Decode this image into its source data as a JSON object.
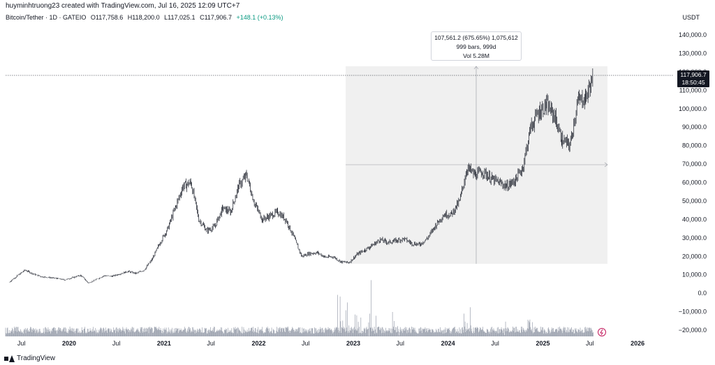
{
  "header": {
    "credit": "huyminhtruong23 created with TradingView.com, Jul 16, 2025 12:09 UTC+7",
    "symbol": "Bitcoin/Tether · 1D · GATEIO",
    "open": "O117,758.6",
    "high": "H118,200.0",
    "low": "L117,025.1",
    "close": "C117,906.7",
    "change": "+148.1 (+0.13%)",
    "currency": "USDT"
  },
  "measure": {
    "line1": "107,561.2 (675.65%) 1,075,612",
    "line2": "999 bars, 999d",
    "line3": "Vol 5.28M"
  },
  "last_price": {
    "price": "117,906.7",
    "countdown": "18:50:45"
  },
  "footer": {
    "brand": "TradingView"
  },
  "colors": {
    "candle": "#131722",
    "volume": "#9aa0ad",
    "measure_fill": "#f0f0f0",
    "price_line": "#131722",
    "change": "#089981"
  },
  "chart_data": {
    "type": "line",
    "y_axis_ticks": [
      "140,000.0",
      "130,000.0",
      "120,000.0",
      "110,000.0",
      "100,000.0",
      "90,000.0",
      "80,000.0",
      "70,000.0",
      "60,000.0",
      "50,000.0",
      "40,000.0",
      "30,000.0",
      "20,000.0",
      "10,000.0",
      "0.0",
      "−10,000.0",
      "−20,000.0"
    ],
    "x_axis_ticks": [
      "Jul",
      "2020",
      "Jul",
      "2021",
      "Jul",
      "2022",
      "Jul",
      "2023",
      "Jul",
      "2024",
      "Jul",
      "2025",
      "Jul",
      "2026"
    ],
    "ylim": [
      -20000,
      140000
    ],
    "x_range": [
      "2019-05-01",
      "2026-03-01"
    ],
    "series": [
      {
        "x": [
          "2019-05",
          "2019-06",
          "2019-07",
          "2019-08",
          "2019-09",
          "2019-10",
          "2019-11",
          "2019-12",
          "2020-01",
          "2020-02",
          "2020-03",
          "2020-04",
          "2020-05",
          "2020-06",
          "2020-07",
          "2020-08",
          "2020-09",
          "2020-10",
          "2020-11",
          "2020-12",
          "2021-01",
          "2021-02",
          "2021-03",
          "2021-04",
          "2021-05",
          "2021-06",
          "2021-07",
          "2021-08",
          "2021-09",
          "2021-10",
          "2021-11",
          "2021-12",
          "2022-01",
          "2022-02",
          "2022-03",
          "2022-04",
          "2022-05",
          "2022-06",
          "2022-07",
          "2022-08",
          "2022-09",
          "2022-10",
          "2022-11",
          "2022-12",
          "2023-01",
          "2023-02",
          "2023-03",
          "2023-04",
          "2023-05",
          "2023-06",
          "2023-07",
          "2023-08",
          "2023-09",
          "2023-10",
          "2023-11",
          "2023-12",
          "2024-01",
          "2024-02",
          "2024-03",
          "2024-04",
          "2024-05",
          "2024-06",
          "2024-07",
          "2024-08",
          "2024-09",
          "2024-10",
          "2024-11",
          "2024-12",
          "2025-01",
          "2025-02",
          "2025-03",
          "2025-04",
          "2025-05",
          "2025-06",
          "2025-07"
        ],
        "values": [
          6000,
          9500,
          12500,
          10500,
          9000,
          8500,
          8000,
          7200,
          8500,
          9700,
          5500,
          7500,
          9500,
          9200,
          10500,
          11800,
          10700,
          12500,
          18000,
          27000,
          35000,
          47000,
          58000,
          60000,
          40000,
          34000,
          36000,
          46000,
          44000,
          58000,
          64000,
          49000,
          40000,
          42000,
          44000,
          40000,
          31000,
          20000,
          21500,
          22000,
          19500,
          19800,
          17000,
          16600,
          21000,
          23500,
          26000,
          29000,
          27500,
          28500,
          29500,
          27000,
          26500,
          30000,
          37000,
          42500,
          43000,
          50000,
          68000,
          64000,
          66000,
          62000,
          60000,
          58000,
          61000,
          68000,
          90000,
          98000,
          102000,
          96000,
          83000,
          80000,
          104000,
          106000,
          117900
        ]
      }
    ],
    "volume_note": "Volume histogram at bottom"
  }
}
